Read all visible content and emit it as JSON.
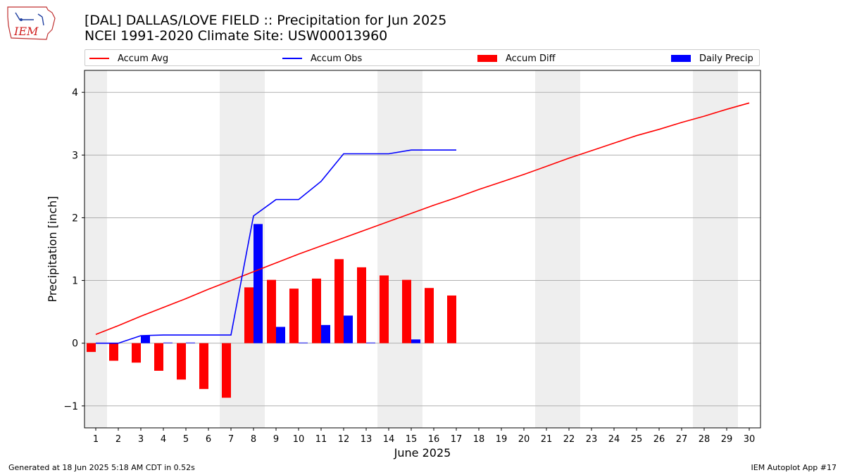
{
  "header": {
    "title_line1": "[DAL] DALLAS/LOVE FIELD :: Precipitation for Jun 2025",
    "title_line2": "NCEI 1991-2020 Climate Site: USW00013960"
  },
  "logo": {
    "text": "IEM"
  },
  "footer": {
    "left": "Generated at 18 Jun 2025 5:18 AM CDT in 0.52s",
    "right": "IEM Autoplot App #17"
  },
  "colors": {
    "accum_avg": "#ff0000",
    "accum_obs": "#0000ff",
    "accum_diff": "#ff0000",
    "daily_precip": "#0000ff",
    "weekend_shade": "#eeeeee",
    "grid": "#b0b0b0"
  },
  "chart_data": {
    "type": "bar",
    "xlabel": "June 2025",
    "ylabel": "Precipitation [inch]",
    "xlim": [
      0.5,
      30.5
    ],
    "ylim": [
      -1.35,
      4.35
    ],
    "yticks": [
      -1,
      0,
      1,
      2,
      3,
      4
    ],
    "ytick_labels": [
      "−1",
      "0",
      "1",
      "2",
      "3",
      "4"
    ],
    "x": [
      1,
      2,
      3,
      4,
      5,
      6,
      7,
      8,
      9,
      10,
      11,
      12,
      13,
      14,
      15,
      16,
      17,
      18,
      19,
      20,
      21,
      22,
      23,
      24,
      25,
      26,
      27,
      28,
      29,
      30
    ],
    "weekend_shading_days": [
      1,
      7,
      8,
      14,
      15,
      21,
      22,
      28,
      29
    ],
    "legend": {
      "placement": "top (above plot)",
      "entries": [
        "Accum Avg",
        "Accum Obs",
        "Accum Diff",
        "Daily Precip"
      ]
    },
    "grid": "horizontal",
    "series": [
      {
        "name": "Accum Avg",
        "kind": "line",
        "x": [
          1,
          2,
          3,
          4,
          5,
          6,
          7,
          8,
          9,
          10,
          11,
          12,
          13,
          14,
          15,
          16,
          17,
          18,
          19,
          20,
          21,
          22,
          23,
          24,
          25,
          26,
          27,
          28,
          29,
          30
        ],
        "values": [
          0.14,
          0.28,
          0.43,
          0.57,
          0.71,
          0.86,
          1.0,
          1.14,
          1.28,
          1.42,
          1.55,
          1.68,
          1.81,
          1.94,
          2.07,
          2.2,
          2.32,
          2.45,
          2.57,
          2.69,
          2.82,
          2.95,
          3.07,
          3.19,
          3.31,
          3.41,
          3.52,
          3.62,
          3.73,
          3.83
        ]
      },
      {
        "name": "Accum Obs",
        "kind": "line",
        "x": [
          1,
          2,
          3,
          4,
          5,
          6,
          7,
          8,
          9,
          10,
          11,
          12,
          13,
          14,
          15,
          16,
          17
        ],
        "values": [
          0.0,
          0.0,
          0.12,
          0.13,
          0.13,
          0.13,
          0.13,
          2.03,
          2.29,
          2.29,
          2.58,
          3.02,
          3.02,
          3.02,
          3.08,
          3.08,
          3.08
        ]
      },
      {
        "name": "Accum Diff",
        "kind": "bar",
        "x": [
          1,
          2,
          3,
          4,
          5,
          6,
          7,
          8,
          9,
          10,
          11,
          12,
          13,
          14,
          15,
          16,
          17
        ],
        "values": [
          -0.14,
          -0.28,
          -0.31,
          -0.44,
          -0.58,
          -0.73,
          -0.87,
          0.89,
          1.01,
          0.87,
          1.03,
          1.34,
          1.21,
          1.08,
          1.01,
          0.88,
          0.76
        ]
      },
      {
        "name": "Daily Precip",
        "kind": "bar",
        "x": [
          1,
          2,
          3,
          4,
          5,
          6,
          7,
          8,
          9,
          10,
          11,
          12,
          13,
          14,
          15,
          16,
          17
        ],
        "values": [
          0.0,
          0.0,
          0.12,
          0.01,
          0.01,
          0.0,
          0.0,
          1.9,
          0.26,
          0.01,
          0.29,
          0.44,
          0.01,
          0.0,
          0.06,
          0.0,
          0.0
        ]
      }
    ]
  }
}
